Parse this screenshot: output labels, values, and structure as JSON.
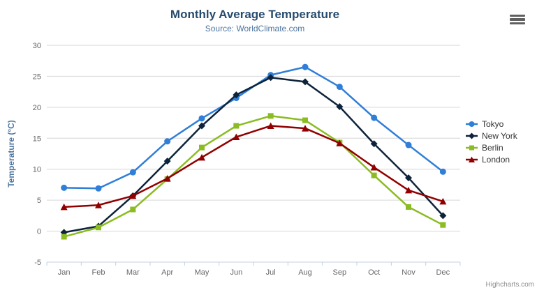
{
  "credits": {
    "label": "Highcharts.com"
  },
  "icons": {
    "context_menu": "hamburger-menu-icon"
  },
  "chart_data": {
    "type": "line",
    "title": "Monthly Average Temperature",
    "subtitle": "Source: WorldClimate.com",
    "categories": [
      "Jan",
      "Feb",
      "Mar",
      "Apr",
      "May",
      "Jun",
      "Jul",
      "Aug",
      "Sep",
      "Oct",
      "Nov",
      "Dec"
    ],
    "xlabel": "",
    "ylabel": "Temperature (°C)",
    "ylim": [
      -5,
      30
    ],
    "ytick_step": 5,
    "grid": true,
    "legend_position": "right",
    "series": [
      {
        "name": "Tokyo",
        "color": "#2f7ed8",
        "marker": "circle",
        "values": [
          7.0,
          6.9,
          9.5,
          14.5,
          18.2,
          21.5,
          25.2,
          26.5,
          23.3,
          18.3,
          13.9,
          9.6
        ]
      },
      {
        "name": "New York",
        "color": "#0d233a",
        "marker": "diamond",
        "values": [
          -0.2,
          0.8,
          5.7,
          11.3,
          17.0,
          22.0,
          24.8,
          24.1,
          20.1,
          14.1,
          8.6,
          2.5
        ]
      },
      {
        "name": "Berlin",
        "color": "#8bbc21",
        "marker": "square",
        "values": [
          -0.9,
          0.6,
          3.5,
          8.4,
          13.5,
          17.0,
          18.6,
          17.9,
          14.3,
          9.0,
          3.9,
          1.0
        ]
      },
      {
        "name": "London",
        "color": "#910000",
        "marker": "triangle",
        "values": [
          3.9,
          4.2,
          5.7,
          8.5,
          11.9,
          15.2,
          17.0,
          16.6,
          14.2,
          10.3,
          6.6,
          4.8
        ]
      }
    ]
  }
}
